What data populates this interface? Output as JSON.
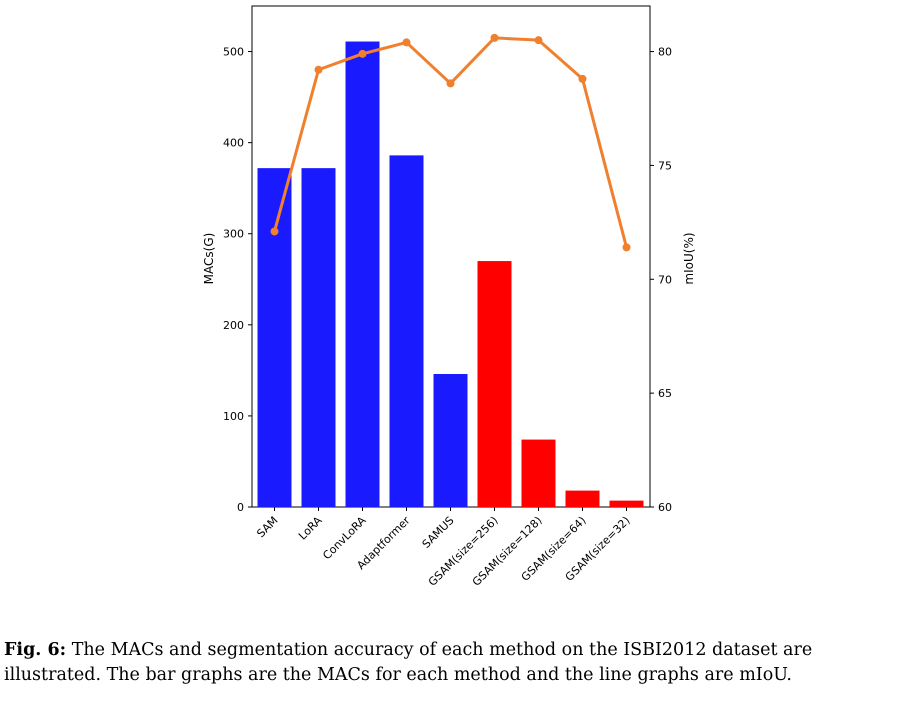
{
  "chart_data": {
    "type": "bar",
    "categories": [
      "SAM",
      "LoRA",
      "ConvLoRA",
      "Adaptformer",
      "SAMUS",
      "GSAM(size=256)",
      "GSAM(size=128)",
      "GSAM(size=64)",
      "GSAM(size=32)"
    ],
    "series": [
      {
        "type": "bar",
        "axis": "left",
        "values": [
          372,
          372,
          511,
          386,
          146,
          270,
          74,
          18,
          7
        ],
        "colors": [
          "#1a1aff",
          "#1a1aff",
          "#1a1aff",
          "#1a1aff",
          "#1a1aff",
          "#ff0000",
          "#ff0000",
          "#ff0000",
          "#ff0000"
        ]
      },
      {
        "type": "line",
        "axis": "right",
        "values": [
          72.1,
          79.2,
          79.9,
          80.4,
          78.6,
          80.6,
          80.5,
          78.8,
          71.4
        ],
        "color": "#f07f2e"
      }
    ],
    "ylabel": "MACs(G)",
    "ylabel_right": "mIoU(%)",
    "ylim": [
      0,
      550
    ],
    "ylim_right": [
      60,
      82
    ],
    "yticks": [
      0,
      100,
      200,
      300,
      400,
      500
    ],
    "yticks_right": [
      60,
      65,
      70,
      75,
      80
    ],
    "grid": false,
    "legend": "none"
  },
  "caption": {
    "label": "Fig. 6:",
    "text": " The MACs and segmentation accuracy of each method on the ISBI2012 dataset are illustrated. The bar graphs are the MACs for each method and the line graphs are mIoU."
  }
}
